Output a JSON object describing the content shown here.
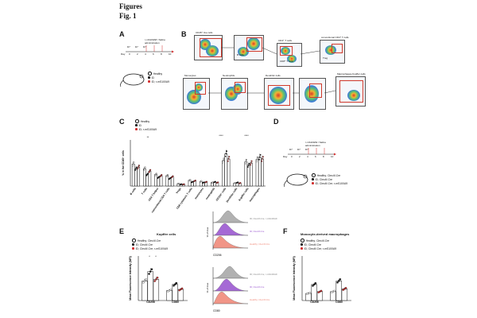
{
  "header": {
    "title": "Figures",
    "fig": "Fig. 1"
  },
  "panels": {
    "A": {
      "label": "A",
      "timeline": {
        "top_text": "r-mS100A8 / Saline",
        "top_text2": "administration",
        "markers": [
          "D7",
          "D7",
          "D7"
        ],
        "day_label": "Day",
        "days": [
          "0",
          "2",
          "4",
          "6",
          "8",
          "10"
        ]
      },
      "legend": [
        "Healthy",
        "ID",
        "ID; r-mS100A9"
      ]
    },
    "B": {
      "label": "B",
      "row1": [
        "CD45⁺ live cells",
        "",
        "CD4⁺ T cells",
        "conventional CD4⁺ T cells"
      ],
      "row1_sub": [
        "",
        "B cells",
        "CD8⁺ T cells",
        "Treg"
      ],
      "row2": [
        "Monocytes",
        "Neutrophils",
        "Dendritic cells",
        "",
        "Macrophages-Kupffer cells"
      ],
      "axes": [
        "CD45",
        "CD19",
        "CD3",
        "CD4",
        "Ly6C",
        "Ly6G",
        "MHC II",
        "F4/80",
        "CD11b"
      ]
    },
    "C": {
      "label": "C",
      "legend": [
        "Healthy",
        "ID",
        "ID; r-mS100A9"
      ],
      "ylabel": "% in live CD45⁺ cells",
      "categories": [
        "B cells",
        "T cells",
        "CD4 T helper",
        "conventional CD4 T cells",
        "Tregs",
        "CD8 cytotoxic T cells",
        "monocytes",
        "neutrophils",
        "CD11b⁺ cells",
        "Dendritic cells",
        "Kupffer cells",
        "macrophages"
      ],
      "sig": [
        "**",
        "****",
        "****"
      ]
    },
    "D": {
      "label": "D",
      "timeline": {
        "top_text": "r-mS100A9 / Saline",
        "top_text2": "administration",
        "markers": [
          "D7",
          "D7",
          "D7"
        ],
        "day_label": "Day",
        "days": [
          "0",
          "2",
          "4",
          "6",
          "8",
          "10"
        ]
      },
      "legend": [
        "Healthy; Clec4f-Cre",
        "ID; Clec4f-Cre",
        "ID; Clec4f-Cre; r-mS100A9"
      ]
    },
    "E": {
      "label": "E",
      "title": "Kupffer cells",
      "legend": [
        "Healthy; Clec4f-Cre",
        "ID; Clec4f-Cre",
        "ID; Clec4f-Cre; r-mS100A9"
      ],
      "ylabel": "Mean Fluorescence Intensity (MFI)",
      "categories": [
        "CD206",
        "CD80"
      ],
      "sig": [
        "*",
        "*"
      ],
      "hist_labels": [
        "ID; Clec4f-Cre; r-mS100A9",
        "ID; Clec4f-Cre",
        "Healthy; Clec4f-Cre"
      ],
      "hist_axis": [
        "CD206",
        "CD80"
      ],
      "hist_ylabel": "% of max"
    },
    "F": {
      "label": "F",
      "title": "Monocyte-derived macrophages",
      "legend": [
        "Healthy; Clec4f-Cre",
        "ID; Clec4f-Cre",
        "ID; Clec4f-Cre; r-mS100A9"
      ],
      "ylabel": "Mean Fluorescence Intensity (MFI)",
      "categories": [
        "CD206",
        "CD80"
      ]
    }
  },
  "colors": {
    "healthy": "#ffffff",
    "id": "#111111",
    "treated": "#d32f2f",
    "gate": "#d0392b",
    "purple": "#9b59d0",
    "salmon": "#f08a7a",
    "grey": "#a8a8a8"
  },
  "chart_data": [
    {
      "type": "bar",
      "title": "",
      "ylabel": "% in live CD45⁺ cells",
      "categories": [
        "B cells",
        "T cells",
        "CD4 T helper",
        "conventional CD4 T cells",
        "Tregs",
        "CD8 cytotoxic T cells",
        "monocytes",
        "neutrophils",
        "CD11b⁺ cells",
        "Dendritic cells",
        "Kupffer cells",
        "macrophages"
      ],
      "series": [
        {
          "name": "Healthy",
          "values": [
            38,
            30,
            20,
            18,
            4,
            10,
            8,
            6,
            44,
            5,
            42,
            46
          ]
        },
        {
          "name": "ID",
          "values": [
            30,
            20,
            15,
            13,
            3,
            7,
            6,
            7,
            56,
            6,
            36,
            50
          ]
        },
        {
          "name": "ID; r-mS100A9",
          "values": [
            33,
            26,
            18,
            16,
            3,
            9,
            7,
            6,
            47,
            5,
            40,
            47
          ]
        }
      ],
      "ylim": [
        0,
        80
      ]
    },
    {
      "type": "bar",
      "title": "Kupffer cells",
      "ylabel": "Mean Fluorescence Intensity (MFI)",
      "categories": [
        "CD206",
        "CD80"
      ],
      "series": [
        {
          "name": "Healthy; Clec4f-Cre",
          "values": [
            3500,
            1800
          ]
        },
        {
          "name": "ID; Clec4f-Cre",
          "values": [
            5200,
            2900
          ]
        },
        {
          "name": "ID; Clec4f-Cre; r-mS100A9",
          "values": [
            3800,
            2000
          ]
        }
      ],
      "ylim": [
        0,
        8000
      ]
    },
    {
      "type": "bar",
      "title": "Monocyte-derived macrophages",
      "ylabel": "Mean Fluorescence Intensity (MFI)",
      "categories": [
        "CD206",
        "CD80"
      ],
      "series": [
        {
          "name": "Healthy; Clec4f-Cre",
          "values": [
            400,
            500
          ]
        },
        {
          "name": "ID; Clec4f-Cre",
          "values": [
            900,
            1100
          ]
        },
        {
          "name": "ID; Clec4f-Cre; r-mS100A9",
          "values": [
            500,
            650
          ]
        }
      ],
      "ylim": [
        0,
        2500
      ]
    }
  ]
}
